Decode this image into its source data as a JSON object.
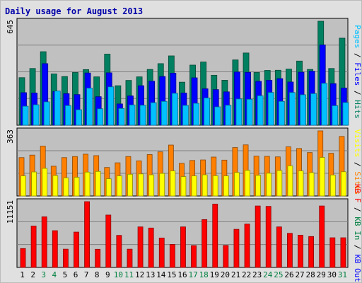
{
  "title": "Daily usage for August 2013",
  "chart_data": [
    {
      "type": "bar",
      "panel": "pages-files-hits",
      "ymax_label": "645",
      "ylim": [
        0,
        645
      ],
      "categories": [
        "1",
        "2",
        "3",
        "4",
        "5",
        "6",
        "7",
        "8",
        "9",
        "10",
        "11",
        "12",
        "13",
        "14",
        "15",
        "16",
        "17",
        "18",
        "19",
        "20",
        "21",
        "22",
        "23",
        "24",
        "25",
        "26",
        "27",
        "28",
        "29",
        "30",
        "31"
      ],
      "series": [
        {
          "name": "Hits",
          "color": "#008060",
          "values": [
            295,
            352,
            456,
            318,
            302,
            327,
            345,
            300,
            441,
            245,
            278,
            300,
            346,
            382,
            430,
            267,
            373,
            392,
            310,
            279,
            405,
            448,
            327,
            340,
            341,
            348,
            398,
            346,
            645,
            352,
            540
          ]
        },
        {
          "name": "Files",
          "color": "#0000ff",
          "values": [
            202,
            200,
            382,
            209,
            196,
            190,
            324,
            177,
            325,
            132,
            182,
            245,
            273,
            302,
            323,
            200,
            294,
            226,
            221,
            207,
            330,
            328,
            272,
            279,
            289,
            268,
            329,
            335,
            498,
            258,
            231
          ]
        },
        {
          "name": "Pages",
          "color": "#00c0ff",
          "values": [
            118,
            127,
            145,
            212,
            122,
            96,
            230,
            102,
            238,
            104,
            126,
            124,
            140,
            148,
            198,
            123,
            136,
            169,
            114,
            124,
            163,
            161,
            183,
            203,
            148,
            203,
            189,
            196,
            260,
            121,
            141
          ]
        }
      ],
      "legend": [
        "Pages",
        "Files",
        "Hits"
      ]
    },
    {
      "type": "bar",
      "panel": "visits-sites",
      "ymax_label": "363",
      "ylim": [
        0,
        363
      ],
      "categories": [
        "1",
        "2",
        "3",
        "4",
        "5",
        "6",
        "7",
        "8",
        "9",
        "10",
        "11",
        "12",
        "13",
        "14",
        "15",
        "16",
        "17",
        "18",
        "19",
        "20",
        "21",
        "22",
        "23",
        "24",
        "25",
        "26",
        "27",
        "28",
        "29",
        "30",
        "31"
      ],
      "series": [
        {
          "name": "Sites",
          "color": "#ff8000",
          "values": [
            214,
            228,
            278,
            166,
            214,
            220,
            233,
            225,
            159,
            185,
            220,
            196,
            231,
            246,
            284,
            182,
            198,
            201,
            217,
            200,
            270,
            285,
            222,
            221,
            218,
            274,
            265,
            242,
            363,
            238,
            332
          ]
        },
        {
          "name": "Visits",
          "color": "#ffff00",
          "values": [
            112,
            134,
            154,
            114,
            101,
            104,
            133,
            137,
            96,
            112,
            121,
            123,
            118,
            126,
            140,
            108,
            112,
            118,
            113,
            112,
            131,
            143,
            115,
            127,
            142,
            168,
            140,
            130,
            215,
            117,
            135
          ]
        }
      ],
      "legend": [
        "Visits",
        "Sites"
      ]
    },
    {
      "type": "bar",
      "panel": "kbytes",
      "ymax_label": "11151",
      "ylim": [
        0,
        11151
      ],
      "categories": [
        "1",
        "2",
        "3",
        "4",
        "5",
        "6",
        "7",
        "8",
        "9",
        "10",
        "11",
        "12",
        "13",
        "14",
        "15",
        "16",
        "17",
        "18",
        "19",
        "20",
        "21",
        "22",
        "23",
        "24",
        "25",
        "26",
        "27",
        "28",
        "29",
        "30",
        "31"
      ],
      "series": [
        {
          "name": "KB F",
          "color": "#ff0000",
          "values": [
            3200,
            7020,
            8580,
            6230,
            3100,
            5990,
            11151,
            3080,
            8880,
            5430,
            3100,
            6870,
            6680,
            4990,
            3900,
            6870,
            3700,
            8110,
            10730,
            3730,
            6460,
            7350,
            10420,
            10350,
            6870,
            5780,
            5470,
            5240,
            10420,
            5030,
            5030
          ]
        }
      ],
      "legend": [
        "KB F",
        "KB In",
        "KB Out"
      ]
    }
  ],
  "weekend_days": [
    "3",
    "4",
    "10",
    "11",
    "17",
    "18",
    "24",
    "25",
    "31"
  ],
  "colors": {
    "panel_bg": "#c0c0c0",
    "outer_bg": "#e0e0e0",
    "weekday_tick": "#000000",
    "weekend_tick": "#008040",
    "legend_sep": "#000000",
    "legend_kb_in": "#008040",
    "legend_kb_out": "#0000ff"
  }
}
